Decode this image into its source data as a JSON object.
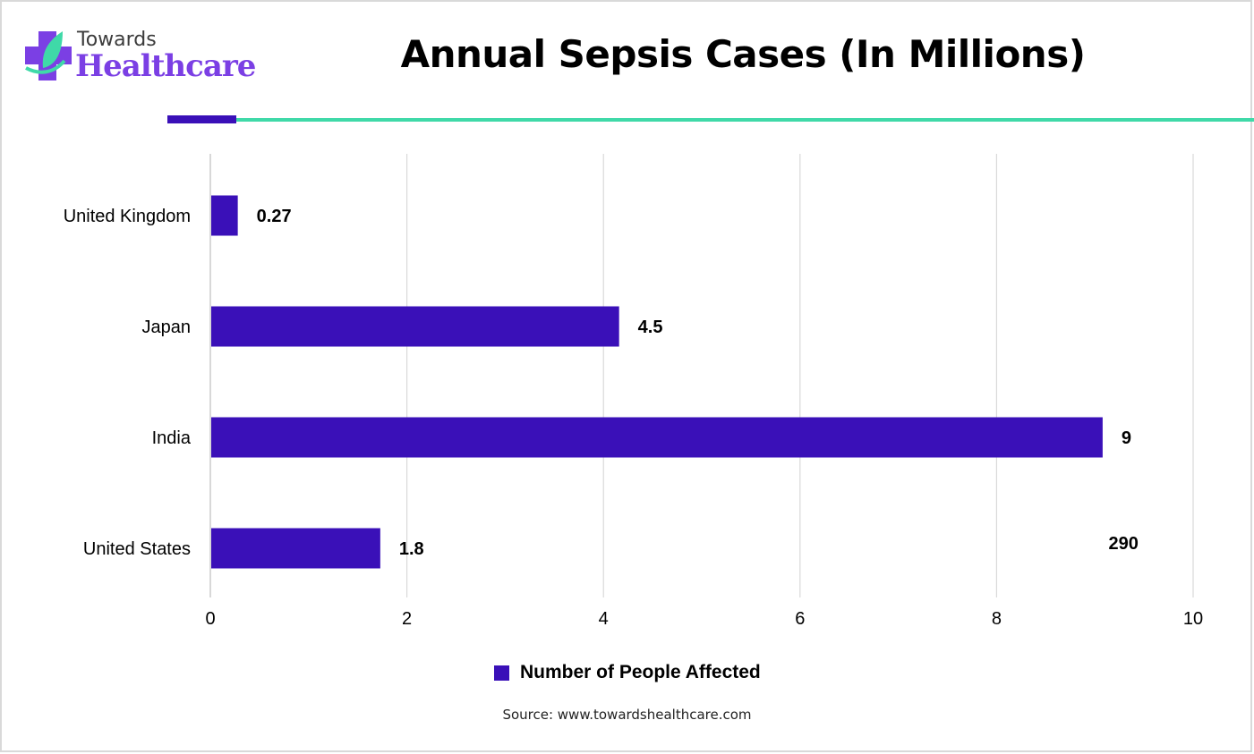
{
  "brand": {
    "line1": "Towards",
    "line2": "Healthcare",
    "icon": "medical-cross-leaf-icon"
  },
  "colors": {
    "bar": "#3a10b8",
    "accent_dark": "#3a10b8",
    "accent_teal": "#3fd9a8",
    "logo_purple": "#7b3fe4",
    "grid": "#d9d9d9"
  },
  "chart_data": {
    "type": "bar",
    "orientation": "horizontal",
    "title": "Annual Sepsis Cases (In Millions)",
    "categories": [
      "United Kingdom",
      "Japan",
      "India",
      "United States"
    ],
    "series": [
      {
        "name": "Number of People Affected",
        "values": [
          0.27,
          4.5,
          9,
          1.8
        ]
      }
    ],
    "bar_lengths_drawn": [
      0.27,
      4.15,
      9.07,
      1.72
    ],
    "data_labels": [
      "0.27",
      "4.5",
      "9",
      "1.8"
    ],
    "annotations": [
      {
        "text": "290",
        "near": "United States",
        "x_value": 9.2
      }
    ],
    "xlabel": "",
    "ylabel": "",
    "xlim": [
      0,
      10
    ],
    "xticks": [
      0,
      2,
      4,
      6,
      8,
      10
    ],
    "xtick_labels": [
      "0",
      "2",
      "4",
      "6",
      "8",
      "10"
    ],
    "grid": true,
    "legend_position": "bottom"
  },
  "source": "Source: www.towardshealthcare.com"
}
